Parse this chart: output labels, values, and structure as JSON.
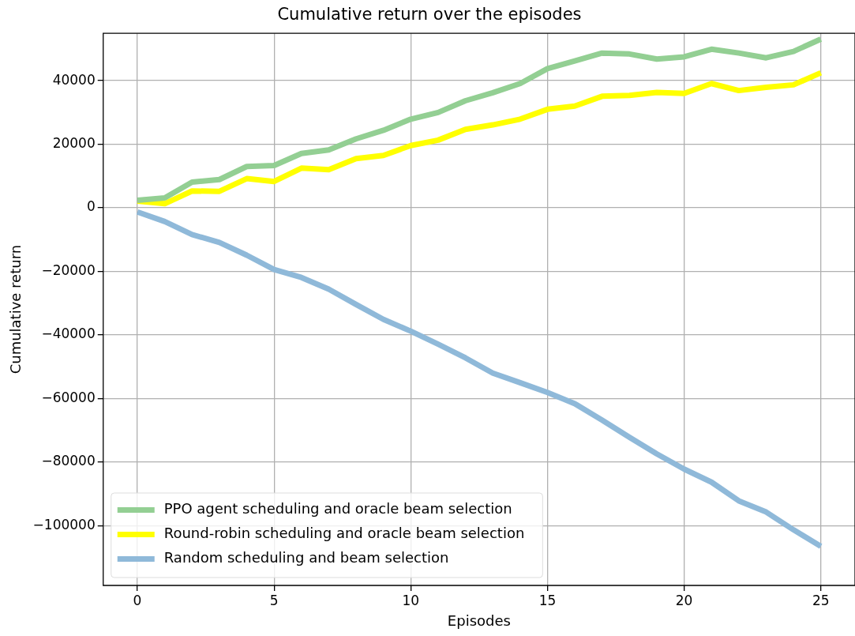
{
  "chart_data": {
    "type": "line",
    "title": "Cumulative return over the episodes",
    "xlabel": "Episodes",
    "ylabel": "Cumulative return",
    "x": [
      0,
      1,
      2,
      3,
      4,
      5,
      6,
      7,
      8,
      9,
      10,
      11,
      12,
      13,
      14,
      15,
      16,
      17,
      18,
      19,
      20,
      21,
      22,
      23,
      24,
      25
    ],
    "series": [
      {
        "name": "PPO agent scheduling and oracle beam selection",
        "color": "#93cf93",
        "values": [
          2400,
          3100,
          8100,
          8900,
          13000,
          13300,
          17100,
          18200,
          21700,
          24400,
          27900,
          30000,
          33700,
          36200,
          39100,
          43800,
          46200,
          48700,
          48400,
          46800,
          47500,
          49900,
          48700,
          47200,
          49200,
          53100
        ]
      },
      {
        "name": "Round-robin scheduling and oracle beam selection",
        "color": "#ffff00",
        "values": [
          2100,
          1300,
          5300,
          5200,
          9200,
          8300,
          12500,
          12000,
          15500,
          16500,
          19600,
          21300,
          24700,
          26100,
          27900,
          31000,
          32000,
          35100,
          35400,
          36300,
          36000,
          39100,
          36900,
          37900,
          38700,
          42500
        ]
      },
      {
        "name": "Random scheduling and beam selection",
        "color": "#8fb9d9",
        "values": [
          -1300,
          -4300,
          -8400,
          -10900,
          -14900,
          -19400,
          -21900,
          -25600,
          -30400,
          -35100,
          -38800,
          -42900,
          -47200,
          -52000,
          -55000,
          -58100,
          -61600,
          -66800,
          -72200,
          -77400,
          -82200,
          -86300,
          -92200,
          -95700,
          -101300,
          -106500
        ]
      }
    ],
    "xlim": [
      -1.25,
      26.25
    ],
    "xticks": [
      0,
      5,
      10,
      15,
      20,
      25
    ],
    "ylim": [
      -118800,
      54900
    ],
    "yticks": [
      -100000,
      -80000,
      -60000,
      -40000,
      -20000,
      0,
      20000,
      40000
    ],
    "grid": true,
    "legend": "bottom left",
    "marker": "none",
    "line_style": "solid"
  }
}
